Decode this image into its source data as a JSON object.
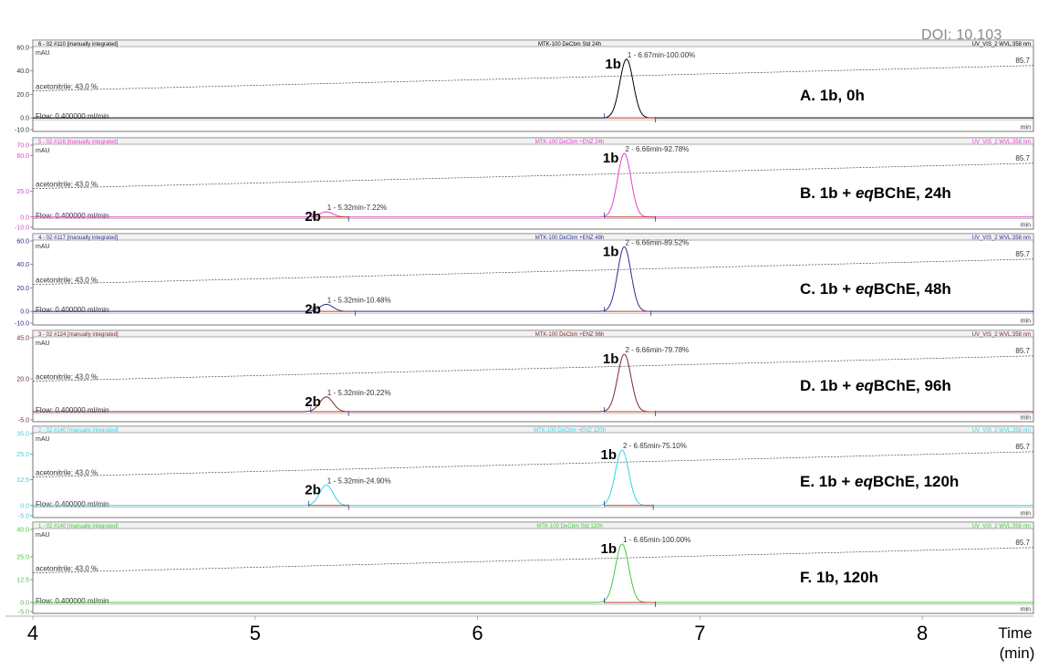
{
  "doi": "DOI: 10.103",
  "x_axis": {
    "ticks": [
      "4",
      "5",
      "6",
      "7",
      "8"
    ],
    "label_line1": "Time",
    "label_line2": "(min)",
    "range": [
      4,
      8.5
    ]
  },
  "chart_data": [
    {
      "type": "line",
      "panel_id": "A",
      "color": "#000000",
      "header_left": "6 - 02 #110 [manually integrated]",
      "header_center": "MTK-100 DeCbm Std 24h",
      "header_right": "UV_VIS_2 WVL:358 nm",
      "unit": "mAU",
      "ylim": [
        -10,
        60
      ],
      "yticks": [
        "60.0",
        "40.0",
        "20.0",
        "0.0",
        "-10.0"
      ],
      "ytick_values": [
        60,
        40,
        20,
        0,
        -10
      ],
      "gradient_label": "acetonitrile: 43.0 %",
      "gradient_end": "85.7",
      "flow_label": "Flow: 0.400000 ml/min",
      "min_label": "min",
      "peaks": [
        {
          "label": "1 - 6.67min-100.00%",
          "rt": 6.67,
          "height": 50,
          "width": 0.03,
          "start": 6.57,
          "end": 6.8,
          "compound": "1b"
        }
      ],
      "condition": "A. 1b, 0h"
    },
    {
      "type": "line",
      "panel_id": "B",
      "color": "#e43fd0",
      "header_left": "5 - 02 #116 [manually integrated]",
      "header_center": "MTK-100 DeCbm +ENZ 24h",
      "header_right": "UV_VIS_2 WVL:358 nm",
      "unit": "mAU",
      "ylim": [
        -10,
        70
      ],
      "yticks": [
        "70.0",
        "60.0",
        "25.0",
        "0.0",
        "-10.0"
      ],
      "ytick_values": [
        70,
        60,
        25,
        0,
        -10
      ],
      "gradient_label": "acetonitrile: 43.0 %",
      "gradient_end": "85.7",
      "flow_label": "Flow: 0.400000 ml/min",
      "min_label": "min",
      "peaks": [
        {
          "label": "1 - 5.32min-7.22%",
          "rt": 5.32,
          "height": 5,
          "width": 0.03,
          "start": 5.26,
          "end": 5.42,
          "compound": "2b"
        },
        {
          "label": "2 - 6.66min-92.78%",
          "rt": 6.66,
          "height": 62,
          "width": 0.03,
          "start": 6.57,
          "end": 6.8,
          "compound": "1b"
        }
      ],
      "condition_prefix": "B. 1b + ",
      "condition_italic": "eq",
      "condition_suffix": "BChE, 24h"
    },
    {
      "type": "line",
      "panel_id": "C",
      "color": "#2a2f8e",
      "header_left": "4 - 02 #117 [manually integrated]",
      "header_center": "MTK-100 DeCbm +ENZ 48h",
      "header_right": "UV_VIS_2 WVL:358 nm",
      "unit": "mAU",
      "ylim": [
        -10,
        60
      ],
      "yticks": [
        "60.0",
        "40.0",
        "20.0",
        "0.0",
        "-10.0"
      ],
      "ytick_values": [
        60,
        40,
        20,
        0,
        -10
      ],
      "gradient_label": "acetonitrile: 43.0 %",
      "gradient_end": "85.7",
      "flow_label": "Flow: 0.400000 ml/min",
      "min_label": "min",
      "peaks": [
        {
          "label": "1 - 5.32min-10.48%",
          "rt": 5.32,
          "height": 6,
          "width": 0.03,
          "start": 5.26,
          "end": 5.45,
          "compound": "2b"
        },
        {
          "label": "2 - 6.66min-89.52%",
          "rt": 6.66,
          "height": 55,
          "width": 0.03,
          "start": 6.57,
          "end": 6.78,
          "compound": "1b"
        }
      ],
      "condition_prefix": "C. 1b + ",
      "condition_italic": "eq",
      "condition_suffix": "BChE, 48h"
    },
    {
      "type": "line",
      "panel_id": "D",
      "color": "#7a2a2a",
      "header_left": "3 - 02 #124 [manually integrated]",
      "header_center": "MTK-100 DeCbm +ENZ 96h",
      "header_right": "UV_VIS_2 WVL:358 nm",
      "unit": "mAU",
      "ylim": [
        -5,
        45
      ],
      "yticks": [
        "45.0",
        "20.0",
        "-5.0"
      ],
      "ytick_values": [
        45,
        20,
        -5
      ],
      "gradient_label": "acetonitrile: 43.0 %",
      "gradient_end": "85.7",
      "flow_label": "Flow: 0.400000 ml/min",
      "min_label": "min",
      "peaks": [
        {
          "label": "1 - 5.32min-20.22%",
          "rt": 5.32,
          "height": 9,
          "width": 0.03,
          "start": 5.25,
          "end": 5.42,
          "compound": "2b"
        },
        {
          "label": "2 - 6.66min-79.78%",
          "rt": 6.66,
          "height": 35,
          "width": 0.03,
          "start": 6.57,
          "end": 6.8,
          "compound": "1b"
        }
      ],
      "condition_prefix": "D. 1b + ",
      "condition_italic": "eq",
      "condition_suffix": "BChE, 96h"
    },
    {
      "type": "line",
      "panel_id": "E",
      "color": "#30d6e6",
      "header_left": "2 - 02 #140 [manually integrated]",
      "header_center": "MTK-100 DeCbm +ENZ 120h",
      "header_right": "UV_VIS_2 WVL:358 nm",
      "unit": "mAU",
      "ylim": [
        -5,
        35
      ],
      "yticks": [
        "35.0",
        "25.0",
        "12.5",
        "0.0",
        "-5.0"
      ],
      "ytick_values": [
        35,
        25,
        12.5,
        0,
        -5
      ],
      "gradient_label": "acetonitrile: 43.0 %",
      "gradient_end": "85.7",
      "flow_label": "Flow: 0.400000 ml/min",
      "min_label": "min",
      "peaks": [
        {
          "label": "1 - 5.32min-24.90%",
          "rt": 5.32,
          "height": 10,
          "width": 0.03,
          "start": 5.24,
          "end": 5.42,
          "compound": "2b"
        },
        {
          "label": "2 - 6.65min-75.10%",
          "rt": 6.65,
          "height": 27,
          "width": 0.03,
          "start": 6.57,
          "end": 6.79,
          "compound": "1b"
        }
      ],
      "condition_prefix": "E. 1b + ",
      "condition_italic": "eq",
      "condition_suffix": "BChE, 120h"
    },
    {
      "type": "line",
      "panel_id": "F",
      "color": "#45c83a",
      "header_left": "1 - 02 #140 [manually integrated]",
      "header_center": "MTK-100 DeCbm Std 120h",
      "header_right": "UV_VIS_2 WVL:358 nm",
      "unit": "mAU",
      "ylim": [
        -5,
        40
      ],
      "yticks": [
        "40.0",
        "25.0",
        "12.5",
        "0.0",
        "-5.0"
      ],
      "ytick_values": [
        40,
        25,
        12.5,
        0,
        -5
      ],
      "gradient_label": "acetonitrile: 43.0 %",
      "gradient_end": "85.7",
      "flow_label": "Flow: 0.400000 ml/min",
      "min_label": "min",
      "peaks": [
        {
          "label": "1 - 6.65min-100.00%",
          "rt": 6.65,
          "height": 32,
          "width": 0.03,
          "start": 6.57,
          "end": 6.8,
          "compound": "1b"
        }
      ],
      "condition": "F. 1b, 120h"
    }
  ]
}
